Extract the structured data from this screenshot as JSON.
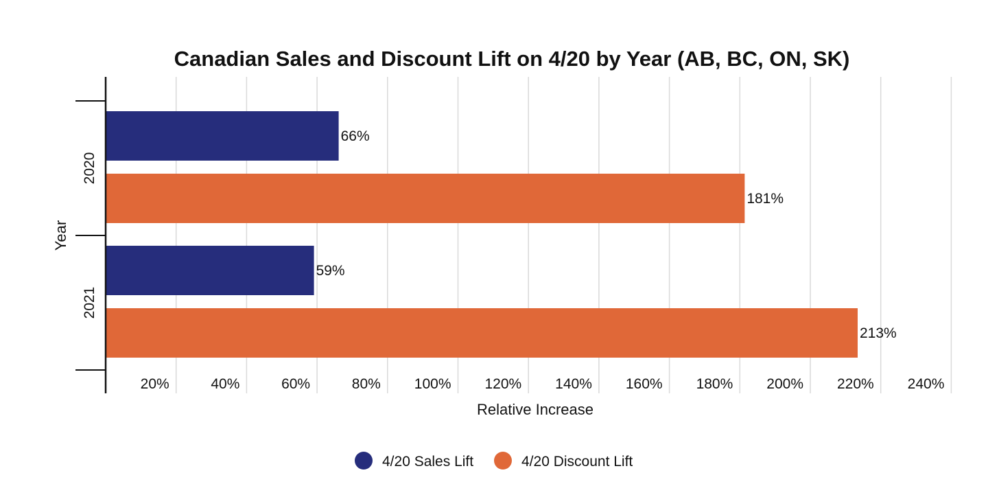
{
  "chart_data": {
    "type": "bar",
    "orientation": "horizontal",
    "title": "Canadian Sales and Discount Lift on 4/20 by Year (AB, BC, ON, SK)",
    "xlabel": "Relative Increase",
    "ylabel": "Year",
    "categories": [
      "2020",
      "2021"
    ],
    "series": [
      {
        "name": "4/20 Sales Lift",
        "color": "#262d7c",
        "values": [
          66,
          59
        ],
        "labels": [
          "66%",
          "59%"
        ]
      },
      {
        "name": "4/20 Discount Lift",
        "color": "#e06838",
        "values": [
          181,
          213
        ],
        "labels": [
          "181%",
          "213%"
        ]
      }
    ],
    "xlim": [
      0,
      240
    ],
    "x_ticks": [
      20,
      40,
      60,
      80,
      100,
      120,
      140,
      160,
      180,
      200,
      220,
      240
    ],
    "x_tick_labels": [
      "20%",
      "40%",
      "60%",
      "80%",
      "100%",
      "120%",
      "140%",
      "160%",
      "180%",
      "200%",
      "220%",
      "240%"
    ],
    "grid": true,
    "legend_position": "bottom"
  }
}
